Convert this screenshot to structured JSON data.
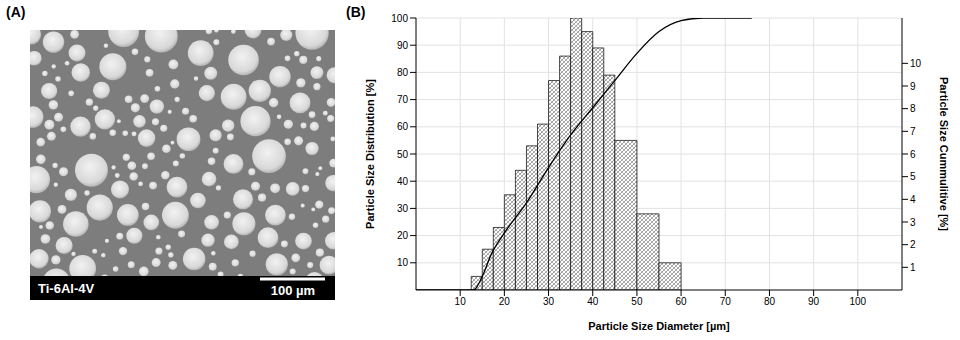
{
  "panel_labels": [
    "(A)",
    "(B)"
  ],
  "image": {
    "caption": "Ti-6Al-4V",
    "scale_bar": "100 µm"
  },
  "chart_data": {
    "type": "histogram",
    "x_label": "Particle Size Diameter [µm]",
    "y_label": "Particle Size Distribution [%]",
    "y2_label": "Particle Size Cummulitive [%]",
    "bins": [
      12.5,
      15,
      17.5,
      20,
      22.5,
      25,
      27.5,
      30,
      32.5,
      35,
      37.5,
      40,
      42.5,
      45,
      50,
      55,
      60
    ],
    "values": [
      5,
      15,
      23,
      35,
      44,
      53,
      61,
      77,
      86,
      100,
      95,
      89,
      79,
      55,
      28,
      10
    ],
    "color": "#7f7f7f",
    "line": {
      "type": "line",
      "x": [
        0,
        10,
        13,
        15,
        17,
        20,
        25,
        30,
        35,
        40,
        45,
        50,
        55,
        60,
        65,
        70,
        76
      ],
      "values": [
        0,
        0,
        0,
        5,
        13,
        21,
        32,
        45,
        57,
        67,
        77,
        87,
        95,
        99,
        100,
        100,
        100
      ],
      "color": "#000000"
    },
    "xlim": [
      0,
      110
    ],
    "xticks": [
      10,
      20,
      30,
      40,
      50,
      60,
      70,
      80,
      90,
      100
    ],
    "ylim": [
      0,
      100
    ],
    "yticks": [
      10,
      20,
      30,
      40,
      50,
      60,
      70,
      80,
      90,
      100
    ],
    "y2lim": [
      0,
      12
    ],
    "y2ticks": [
      1,
      2,
      3,
      4,
      5,
      6,
      7,
      8,
      9,
      10
    ],
    "grid": true
  }
}
